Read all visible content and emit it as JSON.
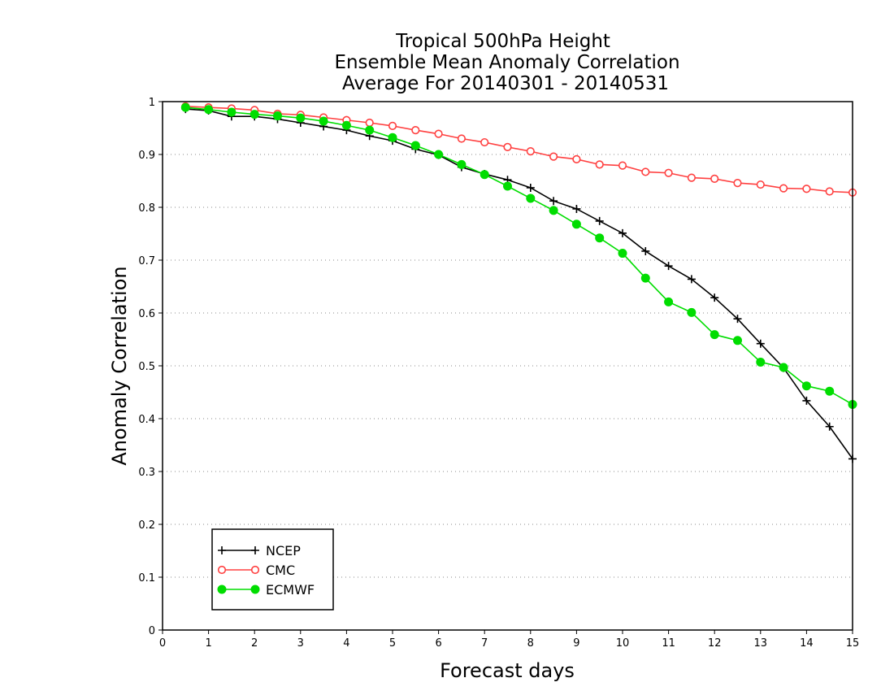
{
  "chart_data": {
    "type": "line",
    "title_lines": [
      "Tropical 500hPa Height",
      "Ensemble Mean Anomaly Correlation",
      "Average For 20140301 - 20140531"
    ],
    "xlabel": "Forecast days",
    "ylabel": "Anomaly Correlation",
    "xlim": [
      0,
      15
    ],
    "ylim": [
      0,
      1
    ],
    "xticks": [
      "0",
      "1",
      "2",
      "3",
      "4",
      "5",
      "6",
      "7",
      "8",
      "9",
      "10",
      "11",
      "12",
      "13",
      "14",
      "15"
    ],
    "yticks": [
      "0",
      "0.1",
      "0.2",
      "0.3",
      "0.4",
      "0.5",
      "0.6",
      "0.7",
      "0.8",
      "0.9",
      "1"
    ],
    "grid": "horizontal dotted",
    "legend_position": "bottom-left",
    "x": [
      0.5,
      1,
      1.5,
      2,
      2.5,
      3,
      3.5,
      4,
      4.5,
      5,
      5.5,
      6,
      6.5,
      7,
      7.5,
      8,
      8.5,
      9,
      9.5,
      10,
      10.5,
      11,
      11.5,
      12,
      12.5,
      13,
      13.5,
      14,
      14.5,
      15
    ],
    "series": [
      {
        "name": "NCEP",
        "color": "#000000",
        "marker": "plus",
        "values": [
          0.986,
          0.983,
          0.972,
          0.972,
          0.967,
          0.96,
          0.953,
          0.946,
          0.935,
          0.926,
          0.91,
          0.899,
          0.876,
          0.863,
          0.852,
          0.837,
          0.812,
          0.797,
          0.774,
          0.751,
          0.717,
          0.689,
          0.664,
          0.629,
          0.589,
          0.542,
          0.496,
          0.434,
          0.385,
          0.324
        ]
      },
      {
        "name": "CMC",
        "color": "#ff4040",
        "marker": "open-circle",
        "values": [
          0.991,
          0.989,
          0.987,
          0.984,
          0.977,
          0.975,
          0.97,
          0.965,
          0.96,
          0.954,
          0.946,
          0.939,
          0.93,
          0.923,
          0.914,
          0.906,
          0.896,
          0.891,
          0.881,
          0.879,
          0.867,
          0.865,
          0.856,
          0.854,
          0.846,
          0.843,
          0.836,
          0.835,
          0.83,
          0.828
        ]
      },
      {
        "name": "ECMWF",
        "color": "#00dd00",
        "marker": "filled-circle",
        "values": [
          0.989,
          0.985,
          0.98,
          0.976,
          0.973,
          0.969,
          0.963,
          0.955,
          0.946,
          0.932,
          0.917,
          0.9,
          0.881,
          0.862,
          0.84,
          0.817,
          0.794,
          0.768,
          0.742,
          0.713,
          0.666,
          0.621,
          0.601,
          0.559,
          0.548,
          0.507,
          0.497,
          0.462,
          0.452,
          0.427
        ]
      }
    ]
  }
}
